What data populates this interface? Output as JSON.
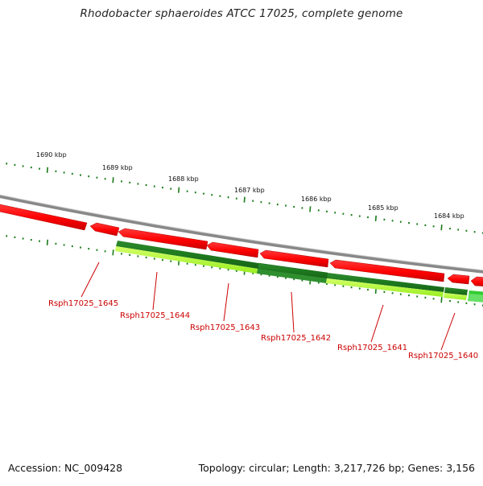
{
  "title": "Rhodobacter sphaeroides ATCC 17025, complete genome",
  "footer": {
    "accession": "Accession: NC_009428",
    "summary": "Topology: circular; Length: 3,217,726 bp; Genes: 3,156"
  },
  "colors": {
    "forward_gene": "#ff0000",
    "reverse_gene_dark": "#1e7a1e",
    "reverse_gene_light": "#aaff33",
    "backbone": "#888888",
    "tick": "#1a7a1a",
    "label": "#cc0000"
  },
  "ruler": {
    "labels": [
      "1690 kbp",
      "1689 kbp",
      "1688 kbp",
      "1687 kbp",
      "1686 kbp",
      "1685 kbp",
      "1684 kbp"
    ]
  },
  "genes": [
    {
      "name": "Rsph17025_1645"
    },
    {
      "name": "Rsph17025_1644"
    },
    {
      "name": "Rsph17025_1643"
    },
    {
      "name": "Rsph17025_1642"
    },
    {
      "name": "Rsph17025_1641"
    },
    {
      "name": "Rsph17025_1640"
    }
  ]
}
